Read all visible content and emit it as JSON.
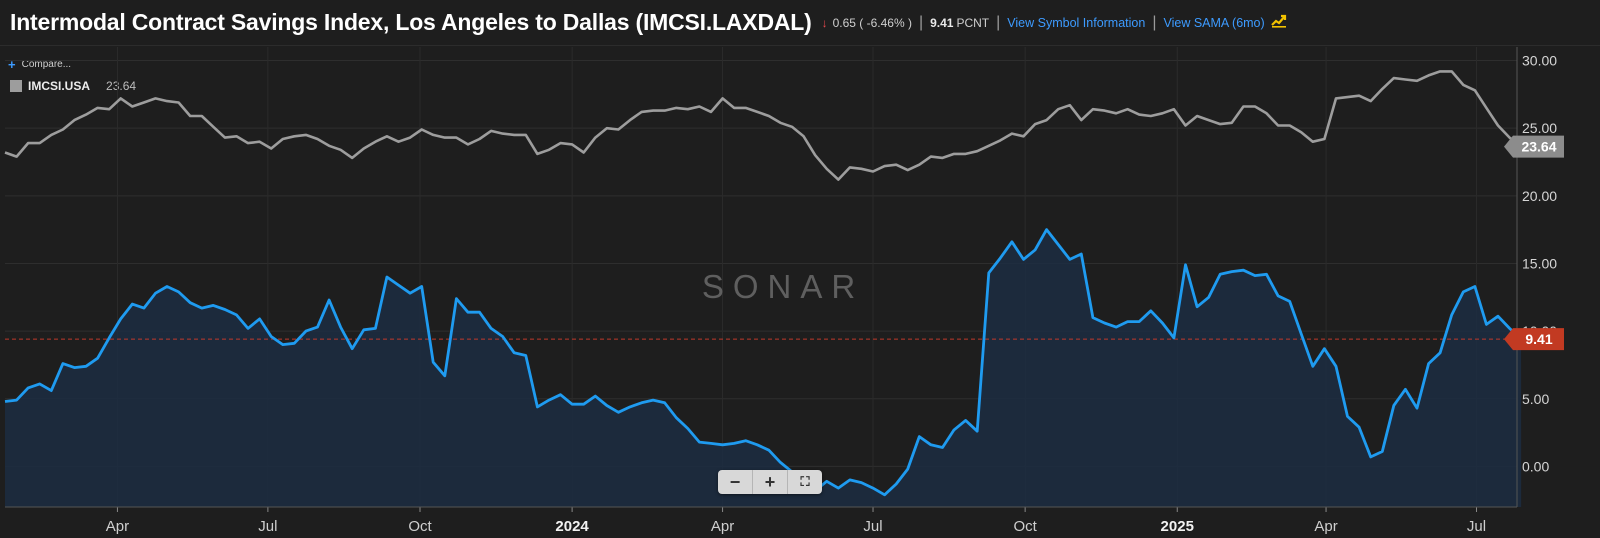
{
  "header": {
    "title": "Intermodal Contract Savings Index, Los Angeles to Dallas (IMCSI.LAXDAL)",
    "change_arrow": "↓",
    "change": "0.65 ( -6.46% )",
    "last_value": "9.41",
    "unit": "PCNT",
    "link_symbol_info": "View Symbol Information",
    "link_sama": "View SAMA (6mo)",
    "sama_icon": "chart-trend-icon"
  },
  "compare": {
    "label": "Compare..."
  },
  "legend": {
    "name": "IMCSI.USA",
    "value": "23.64"
  },
  "watermark": "SONAR",
  "zoom": {
    "minus": "−",
    "plus": "+",
    "fullscreen": "⛶"
  },
  "colors": {
    "background": "#1e1e1e",
    "primary_line": "#1f9bf0",
    "compare_line": "#9d9d9d",
    "last_price_line": "#c0392b",
    "badge_primary": "#c23a22",
    "badge_compare": "#8c8c8c"
  },
  "chart_data": {
    "type": "line",
    "x_axis": {
      "labels": [
        "Apr",
        "Jul",
        "Oct",
        "2024",
        "Apr",
        "Jul",
        "Oct",
        "2025",
        "Apr",
        "Jul"
      ],
      "start": "2023-01-23",
      "end": "2025-07-14"
    },
    "ylim": [
      -3,
      31
    ],
    "yticks": [
      0,
      5,
      10,
      15,
      20,
      25,
      30
    ],
    "ytick_labels": [
      "0.00",
      "5.00",
      "10.00",
      "15.00",
      "20.00",
      "25.00",
      "30.00"
    ],
    "grid": true,
    "series": [
      {
        "name": "IMCSI.LAXDAL",
        "last_label": "9.41",
        "area": true,
        "points": [
          [
            "2023-01-23",
            4.8
          ],
          [
            "2023-01-30",
            4.9
          ],
          [
            "2023-02-06",
            5.8
          ],
          [
            "2023-02-13",
            6.1
          ],
          [
            "2023-02-20",
            5.6
          ],
          [
            "2023-02-27",
            7.6
          ],
          [
            "2023-03-06",
            7.3
          ],
          [
            "2023-03-13",
            7.4
          ],
          [
            "2023-03-20",
            8.0
          ],
          [
            "2023-03-27",
            9.5
          ],
          [
            "2023-04-03",
            10.9
          ],
          [
            "2023-04-10",
            12.0
          ],
          [
            "2023-04-17",
            11.7
          ],
          [
            "2023-04-24",
            12.8
          ],
          [
            "2023-05-01",
            13.3
          ],
          [
            "2023-05-08",
            12.9
          ],
          [
            "2023-05-15",
            12.1
          ],
          [
            "2023-05-22",
            11.7
          ],
          [
            "2023-05-29",
            11.9
          ],
          [
            "2023-06-05",
            11.6
          ],
          [
            "2023-06-12",
            11.2
          ],
          [
            "2023-06-19",
            10.2
          ],
          [
            "2023-06-26",
            10.9
          ],
          [
            "2023-07-03",
            9.6
          ],
          [
            "2023-07-10",
            9.0
          ],
          [
            "2023-07-17",
            9.1
          ],
          [
            "2023-07-24",
            10.0
          ],
          [
            "2023-07-31",
            10.3
          ],
          [
            "2023-08-07",
            12.3
          ],
          [
            "2023-08-14",
            10.3
          ],
          [
            "2023-08-21",
            8.7
          ],
          [
            "2023-08-28",
            10.1
          ],
          [
            "2023-09-04",
            10.2
          ],
          [
            "2023-09-11",
            14.0
          ],
          [
            "2023-09-18",
            13.4
          ],
          [
            "2023-09-25",
            12.8
          ],
          [
            "2023-10-02",
            13.3
          ],
          [
            "2023-10-09",
            7.7
          ],
          [
            "2023-10-16",
            6.7
          ],
          [
            "2023-10-23",
            12.4
          ],
          [
            "2023-10-30",
            11.4
          ],
          [
            "2023-11-06",
            11.4
          ],
          [
            "2023-11-13",
            10.2
          ],
          [
            "2023-11-20",
            9.6
          ],
          [
            "2023-11-27",
            8.4
          ],
          [
            "2023-12-04",
            8.2
          ],
          [
            "2023-12-11",
            4.4
          ],
          [
            "2023-12-18",
            4.9
          ],
          [
            "2023-12-25",
            5.3
          ],
          [
            "2024-01-01",
            4.6
          ],
          [
            "2024-01-08",
            4.6
          ],
          [
            "2024-01-15",
            5.2
          ],
          [
            "2024-01-22",
            4.5
          ],
          [
            "2024-01-29",
            4.0
          ],
          [
            "2024-02-05",
            4.4
          ],
          [
            "2024-02-12",
            4.7
          ],
          [
            "2024-02-19",
            4.9
          ],
          [
            "2024-02-26",
            4.7
          ],
          [
            "2024-03-04",
            3.6
          ],
          [
            "2024-03-11",
            2.8
          ],
          [
            "2024-03-18",
            1.8
          ],
          [
            "2024-03-25",
            1.7
          ],
          [
            "2024-04-01",
            1.6
          ],
          [
            "2024-04-08",
            1.7
          ],
          [
            "2024-04-15",
            1.9
          ],
          [
            "2024-04-22",
            1.6
          ],
          [
            "2024-04-29",
            1.2
          ],
          [
            "2024-05-06",
            0.3
          ],
          [
            "2024-05-13",
            -0.4
          ],
          [
            "2024-05-20",
            -0.7
          ],
          [
            "2024-05-27",
            -1.8
          ],
          [
            "2024-06-03",
            -1.1
          ],
          [
            "2024-06-10",
            -1.6
          ],
          [
            "2024-06-17",
            -1.0
          ],
          [
            "2024-06-24",
            -1.2
          ],
          [
            "2024-07-01",
            -1.6
          ],
          [
            "2024-07-08",
            -2.1
          ],
          [
            "2024-07-15",
            -1.3
          ],
          [
            "2024-07-22",
            -0.2
          ],
          [
            "2024-07-29",
            2.2
          ],
          [
            "2024-08-05",
            1.6
          ],
          [
            "2024-08-12",
            1.4
          ],
          [
            "2024-08-19",
            2.7
          ],
          [
            "2024-08-26",
            3.4
          ],
          [
            "2024-09-02",
            2.6
          ],
          [
            "2024-09-09",
            14.3
          ],
          [
            "2024-09-16",
            15.4
          ],
          [
            "2024-09-23",
            16.6
          ],
          [
            "2024-09-30",
            15.3
          ],
          [
            "2024-10-07",
            16.0
          ],
          [
            "2024-10-14",
            17.5
          ],
          [
            "2024-10-21",
            16.4
          ],
          [
            "2024-10-28",
            15.3
          ],
          [
            "2024-11-04",
            15.7
          ],
          [
            "2024-11-11",
            11.0
          ],
          [
            "2024-11-18",
            10.6
          ],
          [
            "2024-11-25",
            10.3
          ],
          [
            "2024-12-02",
            10.7
          ],
          [
            "2024-12-09",
            10.7
          ],
          [
            "2024-12-16",
            11.5
          ],
          [
            "2024-12-23",
            10.6
          ],
          [
            "2024-12-30",
            9.5
          ],
          [
            "2025-01-06",
            14.9
          ],
          [
            "2025-01-13",
            11.8
          ],
          [
            "2025-01-20",
            12.5
          ],
          [
            "2025-01-27",
            14.2
          ],
          [
            "2025-02-03",
            14.4
          ],
          [
            "2025-02-10",
            14.5
          ],
          [
            "2025-02-17",
            14.1
          ],
          [
            "2025-02-24",
            14.2
          ],
          [
            "2025-03-03",
            12.6
          ],
          [
            "2025-03-10",
            12.2
          ],
          [
            "2025-03-17",
            9.8
          ],
          [
            "2025-03-24",
            7.4
          ],
          [
            "2025-03-31",
            8.7
          ],
          [
            "2025-04-07",
            7.4
          ],
          [
            "2025-04-14",
            3.7
          ],
          [
            "2025-04-21",
            2.9
          ],
          [
            "2025-04-28",
            0.7
          ],
          [
            "2025-05-05",
            1.1
          ],
          [
            "2025-05-12",
            4.5
          ],
          [
            "2025-05-19",
            5.7
          ],
          [
            "2025-05-26",
            4.3
          ],
          [
            "2025-06-02",
            7.6
          ],
          [
            "2025-06-09",
            8.4
          ],
          [
            "2025-06-16",
            11.2
          ],
          [
            "2025-06-23",
            12.9
          ],
          [
            "2025-06-30",
            13.3
          ],
          [
            "2025-07-07",
            10.5
          ],
          [
            "2025-07-14",
            11.1
          ],
          [
            "2025-07-21",
            10.2
          ],
          [
            "2025-07-28",
            9.41
          ]
        ]
      },
      {
        "name": "IMCSI.USA",
        "last_label": "23.64",
        "points": [
          [
            "2023-01-23",
            23.2
          ],
          [
            "2023-01-30",
            22.9
          ],
          [
            "2023-02-06",
            23.9
          ],
          [
            "2023-02-13",
            23.9
          ],
          [
            "2023-02-20",
            24.5
          ],
          [
            "2023-02-27",
            24.9
          ],
          [
            "2023-03-06",
            25.6
          ],
          [
            "2023-03-13",
            26.0
          ],
          [
            "2023-03-20",
            26.5
          ],
          [
            "2023-03-27",
            26.4
          ],
          [
            "2023-04-03",
            27.2
          ],
          [
            "2023-04-10",
            26.6
          ],
          [
            "2023-04-17",
            26.9
          ],
          [
            "2023-04-24",
            27.2
          ],
          [
            "2023-05-01",
            27.0
          ],
          [
            "2023-05-08",
            26.9
          ],
          [
            "2023-05-15",
            25.9
          ],
          [
            "2023-05-22",
            25.9
          ],
          [
            "2023-05-29",
            25.1
          ],
          [
            "2023-06-05",
            24.3
          ],
          [
            "2023-06-12",
            24.4
          ],
          [
            "2023-06-19",
            23.9
          ],
          [
            "2023-06-26",
            24.0
          ],
          [
            "2023-07-03",
            23.5
          ],
          [
            "2023-07-10",
            24.2
          ],
          [
            "2023-07-17",
            24.4
          ],
          [
            "2023-07-24",
            24.5
          ],
          [
            "2023-07-31",
            24.2
          ],
          [
            "2023-08-07",
            23.7
          ],
          [
            "2023-08-14",
            23.4
          ],
          [
            "2023-08-21",
            22.8
          ],
          [
            "2023-08-28",
            23.5
          ],
          [
            "2023-09-04",
            24.0
          ],
          [
            "2023-09-11",
            24.4
          ],
          [
            "2023-09-18",
            24.0
          ],
          [
            "2023-09-25",
            24.3
          ],
          [
            "2023-10-02",
            24.9
          ],
          [
            "2023-10-09",
            24.5
          ],
          [
            "2023-10-16",
            24.3
          ],
          [
            "2023-10-23",
            24.3
          ],
          [
            "2023-10-30",
            23.8
          ],
          [
            "2023-11-06",
            24.2
          ],
          [
            "2023-11-13",
            24.8
          ],
          [
            "2023-11-20",
            24.6
          ],
          [
            "2023-11-27",
            24.5
          ],
          [
            "2023-12-04",
            24.5
          ],
          [
            "2023-12-11",
            23.1
          ],
          [
            "2023-12-18",
            23.4
          ],
          [
            "2023-12-25",
            23.9
          ],
          [
            "2024-01-01",
            23.8
          ],
          [
            "2024-01-08",
            23.2
          ],
          [
            "2024-01-15",
            24.3
          ],
          [
            "2024-01-22",
            25.0
          ],
          [
            "2024-01-29",
            24.9
          ],
          [
            "2024-02-05",
            25.6
          ],
          [
            "2024-02-12",
            26.2
          ],
          [
            "2024-02-19",
            26.3
          ],
          [
            "2024-02-26",
            26.3
          ],
          [
            "2024-03-04",
            26.5
          ],
          [
            "2024-03-11",
            26.4
          ],
          [
            "2024-03-18",
            26.6
          ],
          [
            "2024-03-25",
            26.2
          ],
          [
            "2024-04-01",
            27.2
          ],
          [
            "2024-04-08",
            26.5
          ],
          [
            "2024-04-15",
            26.5
          ],
          [
            "2024-04-22",
            26.2
          ],
          [
            "2024-04-29",
            25.9
          ],
          [
            "2024-05-06",
            25.4
          ],
          [
            "2024-05-13",
            25.1
          ],
          [
            "2024-05-20",
            24.4
          ],
          [
            "2024-05-27",
            23.0
          ],
          [
            "2024-06-03",
            22.0
          ],
          [
            "2024-06-10",
            21.2
          ],
          [
            "2024-06-17",
            22.1
          ],
          [
            "2024-06-24",
            22.0
          ],
          [
            "2024-07-01",
            21.8
          ],
          [
            "2024-07-08",
            22.2
          ],
          [
            "2024-07-15",
            22.3
          ],
          [
            "2024-07-22",
            21.9
          ],
          [
            "2024-07-29",
            22.3
          ],
          [
            "2024-08-05",
            22.9
          ],
          [
            "2024-08-12",
            22.8
          ],
          [
            "2024-08-19",
            23.1
          ],
          [
            "2024-08-26",
            23.1
          ],
          [
            "2024-09-02",
            23.3
          ],
          [
            "2024-09-09",
            23.7
          ],
          [
            "2024-09-16",
            24.1
          ],
          [
            "2024-09-23",
            24.6
          ],
          [
            "2024-09-30",
            24.4
          ],
          [
            "2024-10-07",
            25.3
          ],
          [
            "2024-10-14",
            25.6
          ],
          [
            "2024-10-21",
            26.4
          ],
          [
            "2024-10-28",
            26.7
          ],
          [
            "2024-11-04",
            25.6
          ],
          [
            "2024-11-11",
            26.4
          ],
          [
            "2024-11-18",
            26.3
          ],
          [
            "2024-11-25",
            26.1
          ],
          [
            "2024-12-02",
            26.4
          ],
          [
            "2024-12-09",
            26.0
          ],
          [
            "2024-12-16",
            25.9
          ],
          [
            "2024-12-23",
            26.1
          ],
          [
            "2024-12-30",
            26.4
          ],
          [
            "2025-01-06",
            25.2
          ],
          [
            "2025-01-13",
            25.9
          ],
          [
            "2025-01-20",
            25.6
          ],
          [
            "2025-01-27",
            25.3
          ],
          [
            "2025-02-03",
            25.4
          ],
          [
            "2025-02-10",
            26.6
          ],
          [
            "2025-02-17",
            26.6
          ],
          [
            "2025-02-24",
            26.1
          ],
          [
            "2025-03-03",
            25.2
          ],
          [
            "2025-03-10",
            25.2
          ],
          [
            "2025-03-17",
            24.7
          ],
          [
            "2025-03-24",
            24.0
          ],
          [
            "2025-03-31",
            24.2
          ],
          [
            "2025-04-07",
            27.2
          ],
          [
            "2025-04-14",
            27.3
          ],
          [
            "2025-04-21",
            27.4
          ],
          [
            "2025-04-28",
            27.0
          ],
          [
            "2025-05-05",
            27.9
          ],
          [
            "2025-05-12",
            28.7
          ],
          [
            "2025-05-19",
            28.6
          ],
          [
            "2025-05-26",
            28.5
          ],
          [
            "2025-06-02",
            28.9
          ],
          [
            "2025-06-09",
            29.2
          ],
          [
            "2025-06-16",
            29.2
          ],
          [
            "2025-06-23",
            28.2
          ],
          [
            "2025-06-30",
            27.8
          ],
          [
            "2025-07-07",
            26.5
          ],
          [
            "2025-07-14",
            25.2
          ],
          [
            "2025-07-21",
            24.3
          ],
          [
            "2025-07-28",
            23.64
          ]
        ]
      }
    ]
  }
}
